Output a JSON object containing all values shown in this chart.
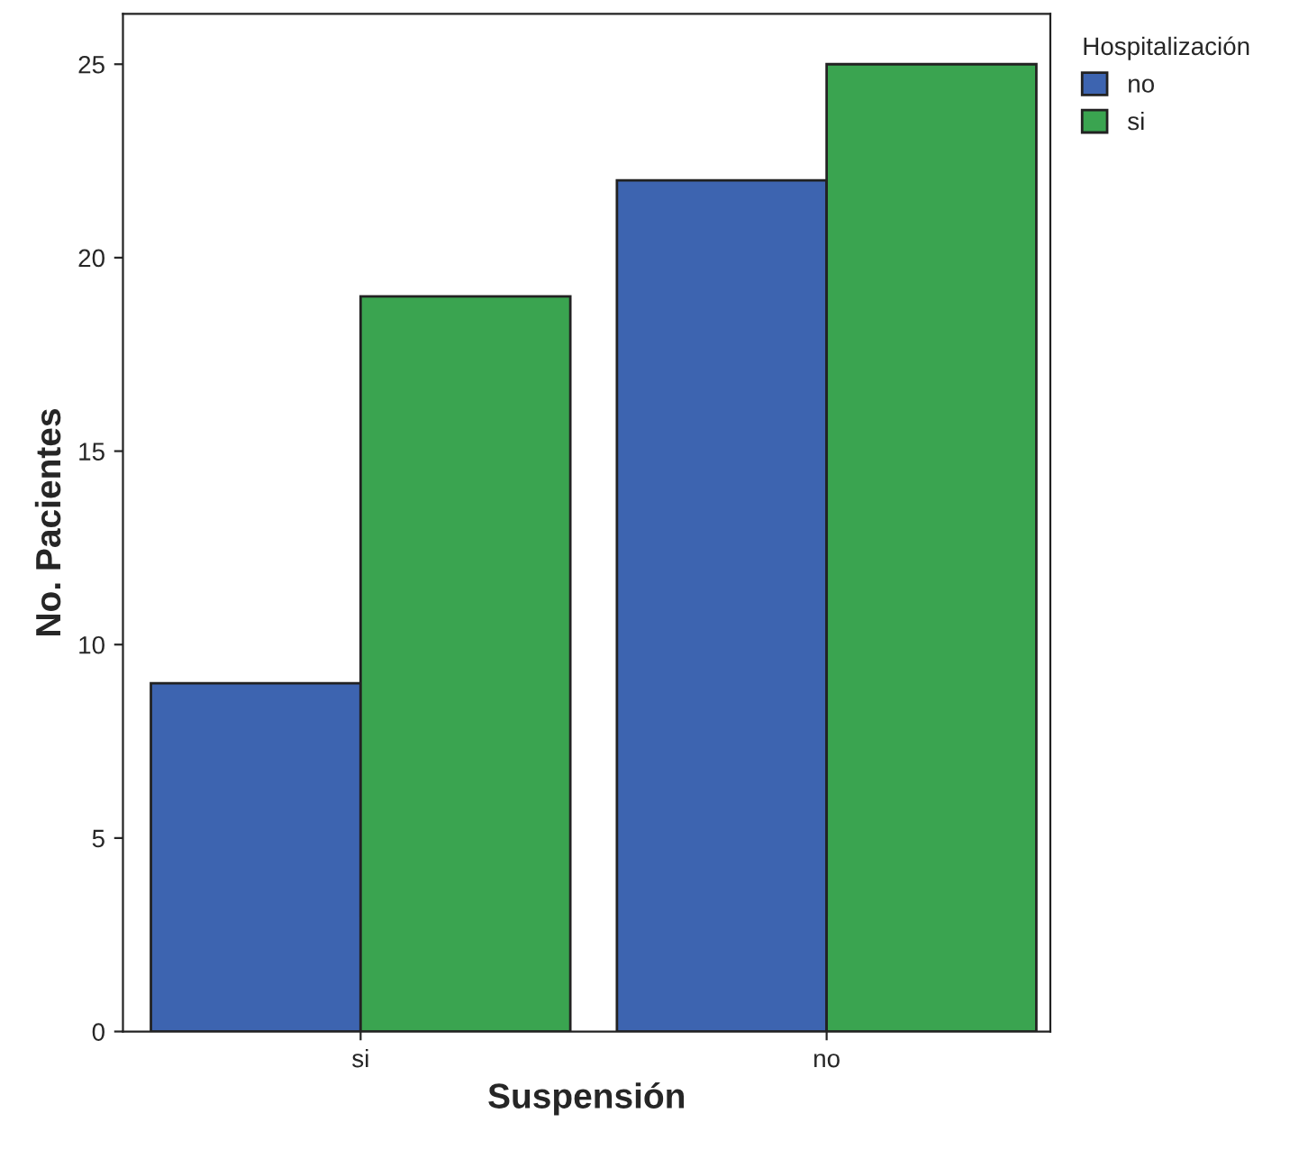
{
  "chart_data": {
    "type": "bar",
    "xlabel": "Suspensión",
    "ylabel": "No. Pacientes",
    "legend_title": "Hospitalización",
    "categories": [
      "si",
      "no"
    ],
    "series": [
      {
        "name": "no",
        "color": "#3d64b0",
        "values": [
          9,
          22
        ]
      },
      {
        "name": "si",
        "color": "#3aa450",
        "values": [
          19,
          25
        ]
      }
    ],
    "ylim": [
      0,
      26.3
    ],
    "yticks": [
      0,
      5,
      10,
      15,
      20,
      25
    ],
    "grid": false,
    "legend": "top right"
  }
}
